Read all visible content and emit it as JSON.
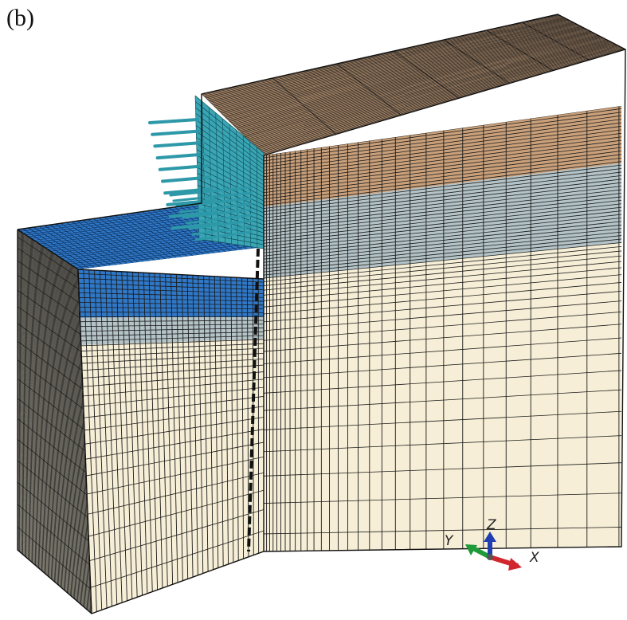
{
  "figure": {
    "panel_label": "(b)"
  },
  "axes_triad": {
    "x_label": "X",
    "y_label": "Y",
    "z_label": "Z",
    "x_color": "#d0262c",
    "y_color": "#1f9a3a",
    "z_color": "#1f3fb0"
  },
  "colors": {
    "fill_layer": "#c9a07a",
    "clay_layer": "#b4c3c7",
    "sand_layer": "#f6eed6",
    "excavated_top": "#2f78c8",
    "excavation_wall": "#3aa6b5",
    "anchors": "#2d98a8",
    "mesh_line": "#1b1b1b",
    "side_face": "#d9d2bd"
  }
}
